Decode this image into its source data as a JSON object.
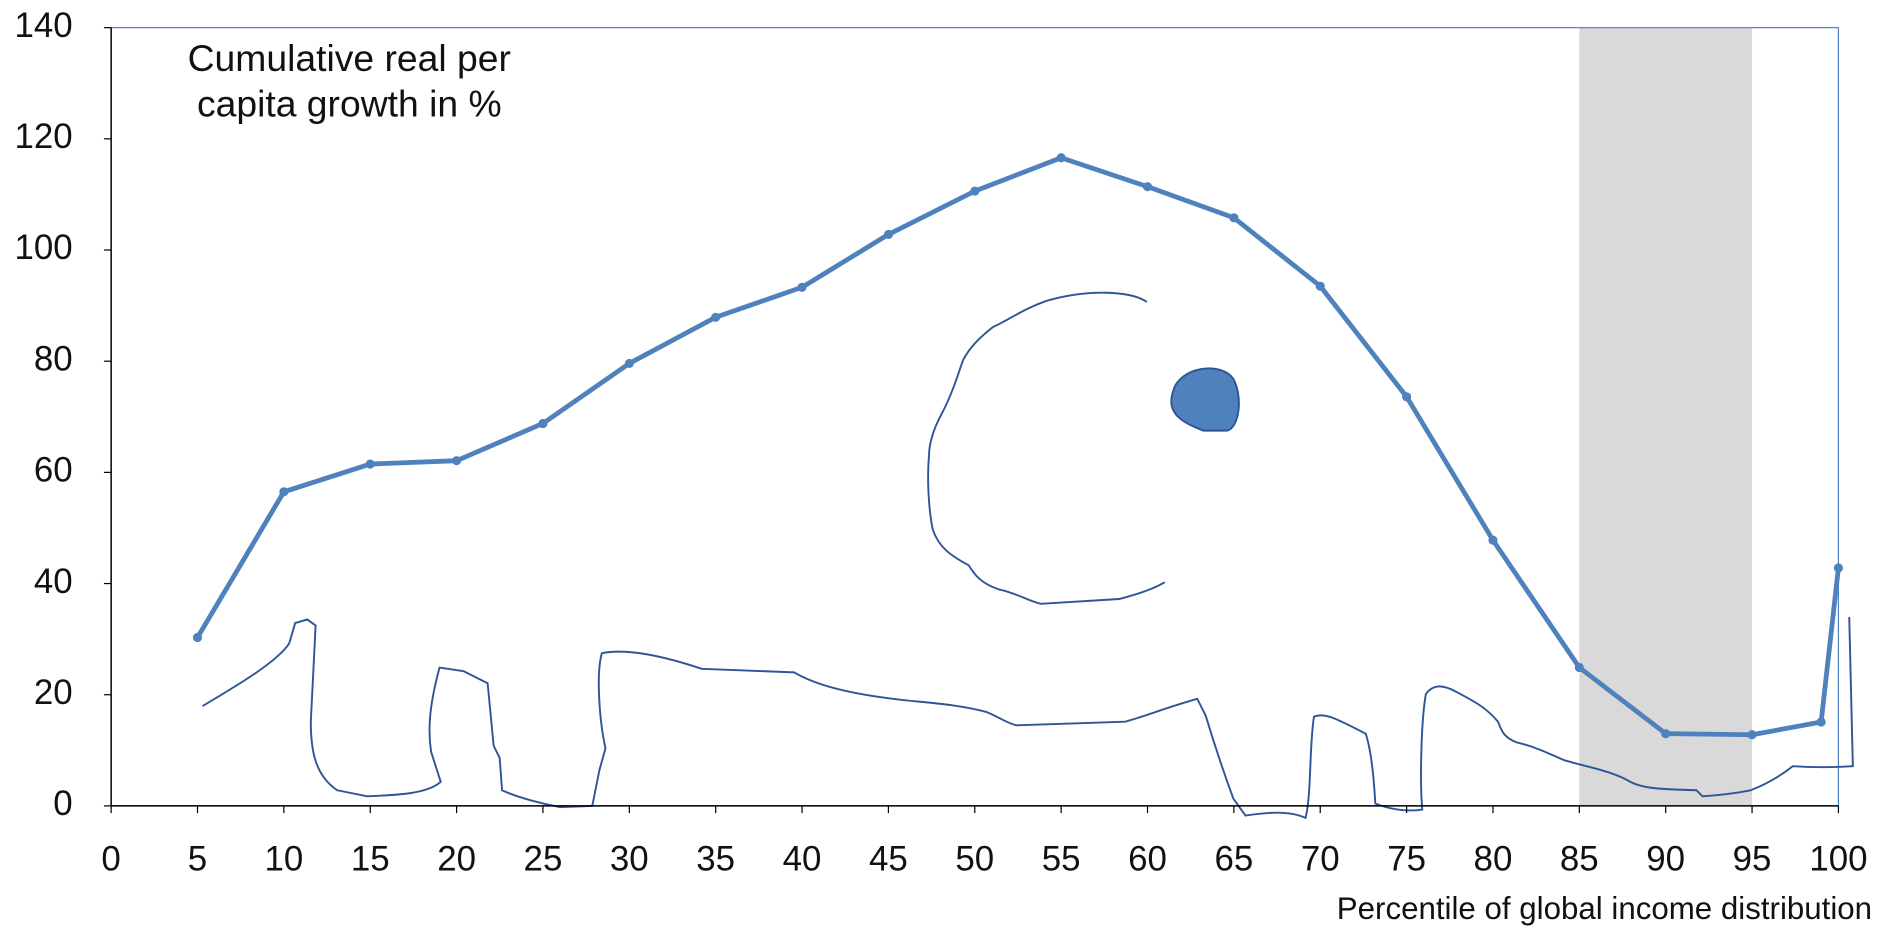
{
  "chart_data": {
    "type": "line",
    "title": "Cumulative real per capita growth in %",
    "x_label": "Percentile of global income distribution",
    "x": [
      5,
      10,
      15,
      20,
      25,
      30,
      35,
      40,
      45,
      50,
      55,
      60,
      65,
      70,
      75,
      80,
      85,
      90,
      95,
      99,
      100
    ],
    "series": [
      {
        "color": "#4f81bd",
        "values": [
          30.3,
          56.5,
          61.5,
          62.1,
          68.8,
          79.6,
          87.9,
          93.3,
          102.8,
          110.6,
          116.6,
          111.4,
          105.8,
          93.5,
          73.6,
          47.8,
          24.9,
          13.0,
          12.8,
          15.1,
          42.8
        ]
      }
    ],
    "xlim": [
      0,
      100
    ],
    "xticks": [
      0,
      5,
      10,
      15,
      20,
      25,
      30,
      35,
      40,
      45,
      50,
      55,
      60,
      65,
      70,
      75,
      80,
      85,
      90,
      95,
      100
    ],
    "ylim": [
      0,
      140
    ],
    "yticks": [
      0,
      20,
      40,
      60,
      80,
      100,
      120,
      140
    ],
    "highlight": {
      "xlim": [
        85,
        95
      ],
      "color": "#d9d9d9"
    }
  }
}
